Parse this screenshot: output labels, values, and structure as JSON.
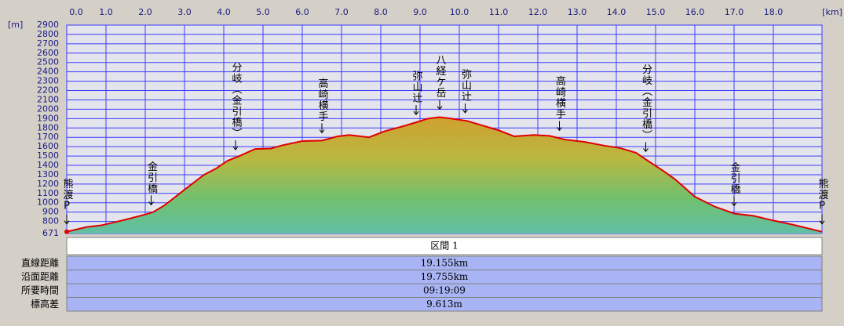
{
  "chart_data": {
    "type": "area",
    "x_unit": "[km]",
    "y_unit": "[m]",
    "x": [
      0,
      0.5,
      0.9,
      1.0,
      1.5,
      2.0,
      2.2,
      2.5,
      3.0,
      3.5,
      3.8,
      4.1,
      4.4,
      4.8,
      5.2,
      5.5,
      6.0,
      6.5,
      6.9,
      7.2,
      7.7,
      8.1,
      8.5,
      8.9,
      9.2,
      9.5,
      9.8,
      10.2,
      10.6,
      11.0,
      11.4,
      11.9,
      12.3,
      12.7,
      13.2,
      13.7,
      14.1,
      14.5,
      14.8,
      15.2,
      15.5,
      16.0,
      16.5,
      17.0,
      17.5,
      18.0,
      18.5,
      18.9,
      19.24
    ],
    "values": [
      690,
      740,
      760,
      770,
      820,
      875,
      900,
      975,
      1140,
      1300,
      1365,
      1450,
      1500,
      1575,
      1580,
      1615,
      1660,
      1665,
      1710,
      1725,
      1700,
      1765,
      1810,
      1860,
      1900,
      1915,
      1900,
      1875,
      1825,
      1775,
      1710,
      1725,
      1715,
      1675,
      1650,
      1610,
      1585,
      1535,
      1450,
      1340,
      1250,
      1065,
      960,
      885,
      860,
      810,
      765,
      725,
      690
    ],
    "color": "#e00000",
    "xlim": [
      0,
      19.24
    ],
    "ylim": [
      671,
      2900
    ],
    "xticks": [
      {
        "value": 0,
        "label": "0.0"
      },
      {
        "value": 1,
        "label": "1.0"
      },
      {
        "value": 2,
        "label": "2.0"
      },
      {
        "value": 3,
        "label": "3.0"
      },
      {
        "value": 4,
        "label": "4.0"
      },
      {
        "value": 5,
        "label": "5.0"
      },
      {
        "value": 6,
        "label": "6.0"
      },
      {
        "value": 7,
        "label": "7.0"
      },
      {
        "value": 8,
        "label": "8.0"
      },
      {
        "value": 9,
        "label": "9.0"
      },
      {
        "value": 10,
        "label": "10.0"
      },
      {
        "value": 11,
        "label": "11.0"
      },
      {
        "value": 12,
        "label": "12.0"
      },
      {
        "value": 13,
        "label": "13.0"
      },
      {
        "value": 14,
        "label": "14.0"
      },
      {
        "value": 15,
        "label": "15.0"
      },
      {
        "value": 16,
        "label": "16.0"
      },
      {
        "value": 17,
        "label": "17.0"
      },
      {
        "value": 18,
        "label": "18.0"
      }
    ],
    "yticks": [
      671,
      800,
      900,
      1000,
      1100,
      1200,
      1300,
      1400,
      1500,
      1600,
      1700,
      1800,
      1900,
      2000,
      2100,
      2200,
      2300,
      2400,
      2500,
      2600,
      2700,
      2800,
      2900
    ],
    "grid": true,
    "annotations": [
      {
        "text": "熊渡P",
        "x": 0
      },
      {
        "text": "金引橋",
        "x": 2.15
      },
      {
        "text": "分岐（金引橋）",
        "x": 4.3
      },
      {
        "text": "高崎横手",
        "x": 6.5
      },
      {
        "text": "弥山辻",
        "x": 8.9
      },
      {
        "text": "八経ケ岳",
        "x": 9.5
      },
      {
        "text": "弥山辻",
        "x": 10.15
      },
      {
        "text": "高崎横手",
        "x": 12.55
      },
      {
        "text": "分岐（金引橋）",
        "x": 14.75
      },
      {
        "text": "金引橋",
        "x": 17.0
      },
      {
        "text": "熊渡P",
        "x": 19.24
      }
    ]
  },
  "table": {
    "header": "区間 1",
    "rows": [
      [
        "直線距離",
        "19.155km"
      ],
      [
        "沿面距離",
        "19.755km"
      ],
      [
        "所要時間",
        "09:19:09"
      ],
      [
        "標高差",
        "9.613m"
      ]
    ]
  }
}
